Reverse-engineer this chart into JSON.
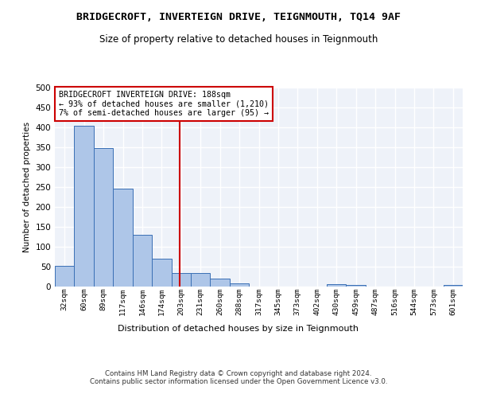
{
  "title1": "BRIDGECROFT, INVERTEIGN DRIVE, TEIGNMOUTH, TQ14 9AF",
  "title2": "Size of property relative to detached houses in Teignmouth",
  "xlabel": "Distribution of detached houses by size in Teignmouth",
  "ylabel": "Number of detached properties",
  "bar_labels": [
    "32sqm",
    "60sqm",
    "89sqm",
    "117sqm",
    "146sqm",
    "174sqm",
    "203sqm",
    "231sqm",
    "260sqm",
    "288sqm",
    "317sqm",
    "345sqm",
    "373sqm",
    "402sqm",
    "430sqm",
    "459sqm",
    "487sqm",
    "516sqm",
    "544sqm",
    "573sqm",
    "601sqm"
  ],
  "bar_values": [
    52,
    404,
    348,
    246,
    130,
    70,
    35,
    35,
    20,
    8,
    0,
    0,
    0,
    0,
    6,
    5,
    0,
    0,
    0,
    0,
    5
  ],
  "bar_color": "#aec6e8",
  "bar_edge_color": "#3a6fb5",
  "ylim": [
    0,
    500
  ],
  "yticks": [
    0,
    50,
    100,
    150,
    200,
    250,
    300,
    350,
    400,
    450,
    500
  ],
  "vline_x": 5.93,
  "vline_color": "#cc0000",
  "annotation_lines": [
    "BRIDGECROFT INVERTEIGN DRIVE: 188sqm",
    "← 93% of detached houses are smaller (1,210)",
    "7% of semi-detached houses are larger (95) →"
  ],
  "annotation_box_color": "#cc0000",
  "footer1": "Contains HM Land Registry data © Crown copyright and database right 2024.",
  "footer2": "Contains public sector information licensed under the Open Government Licence v3.0.",
  "background_color": "#eef2f9",
  "grid_color": "#ffffff",
  "title1_fontsize": 9.5,
  "title2_fontsize": 8.5
}
